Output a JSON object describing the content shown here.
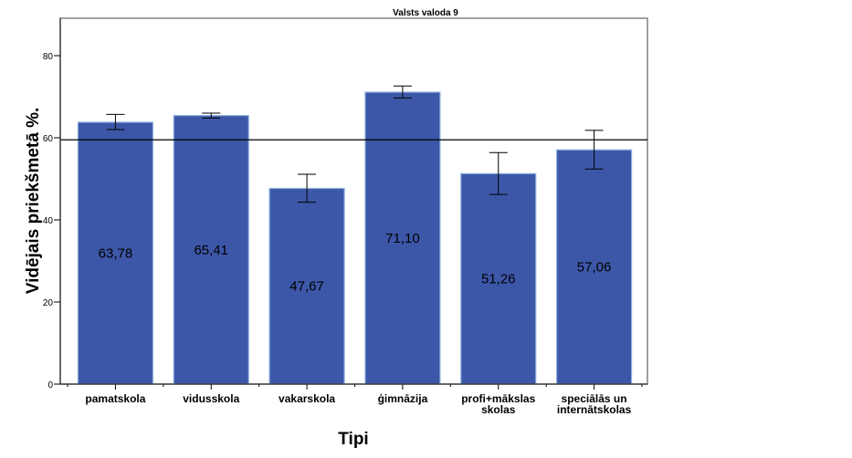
{
  "chart_data": {
    "type": "bar",
    "title": "Valsts valoda 9",
    "xlabel": "Tipi",
    "ylabel": "Vidējais priekšmetā %.",
    "ylim": [
      0,
      89
    ],
    "yticks": [
      0,
      20,
      40,
      60,
      80
    ],
    "categories": [
      [
        "pamatskola"
      ],
      [
        "vidusskola"
      ],
      [
        "vakarskola"
      ],
      [
        "ģimnāzija"
      ],
      [
        "profi+mākslas",
        "skolas"
      ],
      [
        "speciālās un",
        "internātskolas"
      ]
    ],
    "values": [
      63.78,
      65.41,
      47.67,
      71.1,
      51.26,
      57.06
    ],
    "value_labels": [
      "63,78",
      "65,41",
      "47,67",
      "71,10",
      "51,26",
      "57,06"
    ],
    "error_bars": [
      {
        "low": 62.0,
        "high": 65.7
      },
      {
        "low": 64.8,
        "high": 66.0
      },
      {
        "low": 44.3,
        "high": 51.1
      },
      {
        "low": 69.7,
        "high": 72.6
      },
      {
        "low": 46.2,
        "high": 56.4
      },
      {
        "low": 52.4,
        "high": 61.8
      }
    ],
    "reference_line": 59.5,
    "grid": false,
    "legend": "none",
    "colors": {
      "bar_fill": "#3d57a8",
      "bar_edge": "#8eb2de",
      "frame": "#808080",
      "reference": "#000000"
    }
  }
}
